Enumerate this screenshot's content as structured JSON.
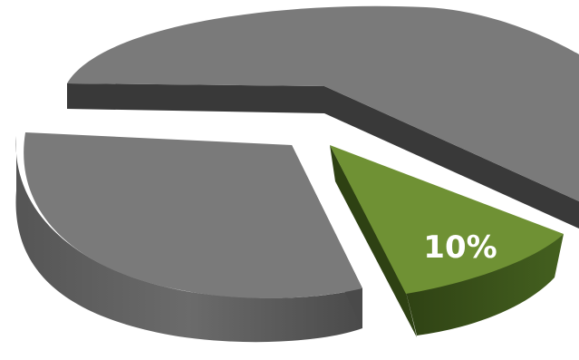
{
  "chart_data": {
    "type": "pie",
    "style": "3d-exploded",
    "slices": [
      {
        "value": 10,
        "label": "10%",
        "color": "#6f9134",
        "side_color": "#3d551c",
        "highlight": true
      },
      {
        "value": 50,
        "label": "",
        "color": "#7a7a7a",
        "side_color": "#3a3a3a",
        "highlight": false
      },
      {
        "value": 40,
        "label": "",
        "color": "#7a7a7a",
        "side_color": "#5f5f5f",
        "highlight": false
      }
    ]
  },
  "labels": {
    "highlight_value": "10%"
  }
}
